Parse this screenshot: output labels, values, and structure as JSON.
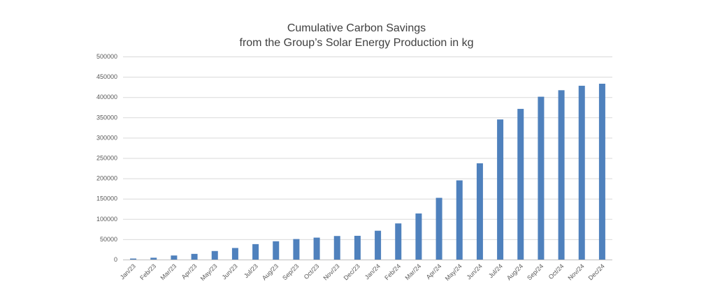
{
  "chart_data": {
    "type": "bar",
    "title_line1": "Cumulative Carbon Savings",
    "title_line2": "from the Group’s Solar Energy Production in kg",
    "xlabel": "",
    "ylabel": "",
    "ylim": [
      0,
      500000
    ],
    "yticks": [
      "0",
      "50000",
      "100000",
      "150000",
      "200000",
      "250000",
      "300000",
      "350000",
      "400000",
      "450000",
      "500000"
    ],
    "grid": true,
    "legend": "none",
    "bar_color": "#4f81bd",
    "categories": [
      "Jan/23",
      "Feb/23",
      "Mar/23",
      "Apr/23",
      "May/23",
      "Jun/23",
      "Jul/23",
      "Aug/23",
      "Sep/23",
      "Oct/23",
      "Nov/23",
      "Dec/23",
      "Jan/24",
      "Feb/24",
      "Mar/24",
      "Apr/24",
      "May/24",
      "Jun/24",
      "Jul/24",
      "Aug/24",
      "Sep/24",
      "Oct/24",
      "Nov/24",
      "Dec/24"
    ],
    "values": [
      2500,
      4500,
      10000,
      14000,
      21000,
      28500,
      38000,
      45000,
      50500,
      54000,
      58000,
      58500,
      71000,
      89000,
      113500,
      152000,
      195000,
      237000,
      345000,
      371000,
      401000,
      417000,
      428000,
      433000
    ]
  }
}
